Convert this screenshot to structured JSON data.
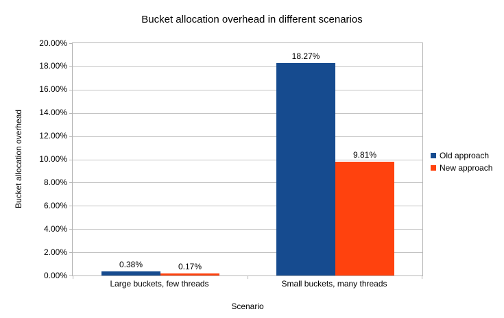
{
  "chart_data": {
    "type": "bar",
    "title": "Bucket allocation overhead in different scenarios",
    "xlabel": "Scenario",
    "ylabel": "Bucket allocation overhead",
    "categories": [
      "Large buckets, few threads",
      "Small buckets, many threads"
    ],
    "series": [
      {
        "name": "Old approach",
        "color": "#164b8f",
        "values": [
          0.38,
          18.27
        ],
        "labels": [
          "0.38%",
          "18.27%"
        ]
      },
      {
        "name": "New approach",
        "color": "#ff420e",
        "values": [
          0.17,
          9.81
        ],
        "labels": [
          "0.17%",
          "9.81%"
        ]
      }
    ],
    "y_axis": {
      "min": 0,
      "max": 20,
      "step": 2,
      "tick_labels": [
        "0.00%",
        "2.00%",
        "4.00%",
        "6.00%",
        "8.00%",
        "10.00%",
        "12.00%",
        "14.00%",
        "16.00%",
        "18.00%",
        "20.00%"
      ]
    },
    "grid": true,
    "legend_position": "right"
  },
  "colors": {
    "grid": "#c2c2c2",
    "axis": "#b3b3b3",
    "text": "#000000",
    "background": "#ffffff"
  }
}
